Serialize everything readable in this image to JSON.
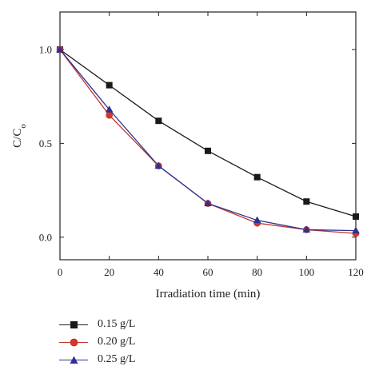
{
  "chart_data": {
    "type": "line",
    "xlabel": "Irradiation time (min)",
    "ylabel": "C/C",
    "ylabel_sub": "o",
    "xlim": [
      0,
      120
    ],
    "ylim": [
      -0.12,
      1.2
    ],
    "xticks": [
      0,
      20,
      40,
      60,
      80,
      100,
      120
    ],
    "yticks": [
      0.0,
      0.5,
      1.0
    ],
    "ytick_labels": [
      "0.0",
      "0.5",
      "1.0"
    ],
    "grid": false,
    "legend_position": "bottom-left, below plot",
    "x": [
      0,
      20,
      40,
      60,
      80,
      100,
      120
    ],
    "series": [
      {
        "name": "0.15 g/L",
        "marker": "square",
        "color": "#1a1a1a",
        "line_color": "#1a1a1a",
        "values": [
          1.0,
          0.81,
          0.62,
          0.46,
          0.32,
          0.19,
          0.11
        ]
      },
      {
        "name": "0.20 g/L",
        "marker": "circle",
        "color": "#d9342b",
        "line_color": "#c0392b",
        "values": [
          1.0,
          0.65,
          0.38,
          0.18,
          0.075,
          0.04,
          0.02
        ]
      },
      {
        "name": "0.25 g/L",
        "marker": "triangle",
        "color": "#2e3192",
        "line_color": "#2e3192",
        "values": [
          1.0,
          0.68,
          0.38,
          0.18,
          0.09,
          0.04,
          0.035
        ]
      }
    ]
  }
}
